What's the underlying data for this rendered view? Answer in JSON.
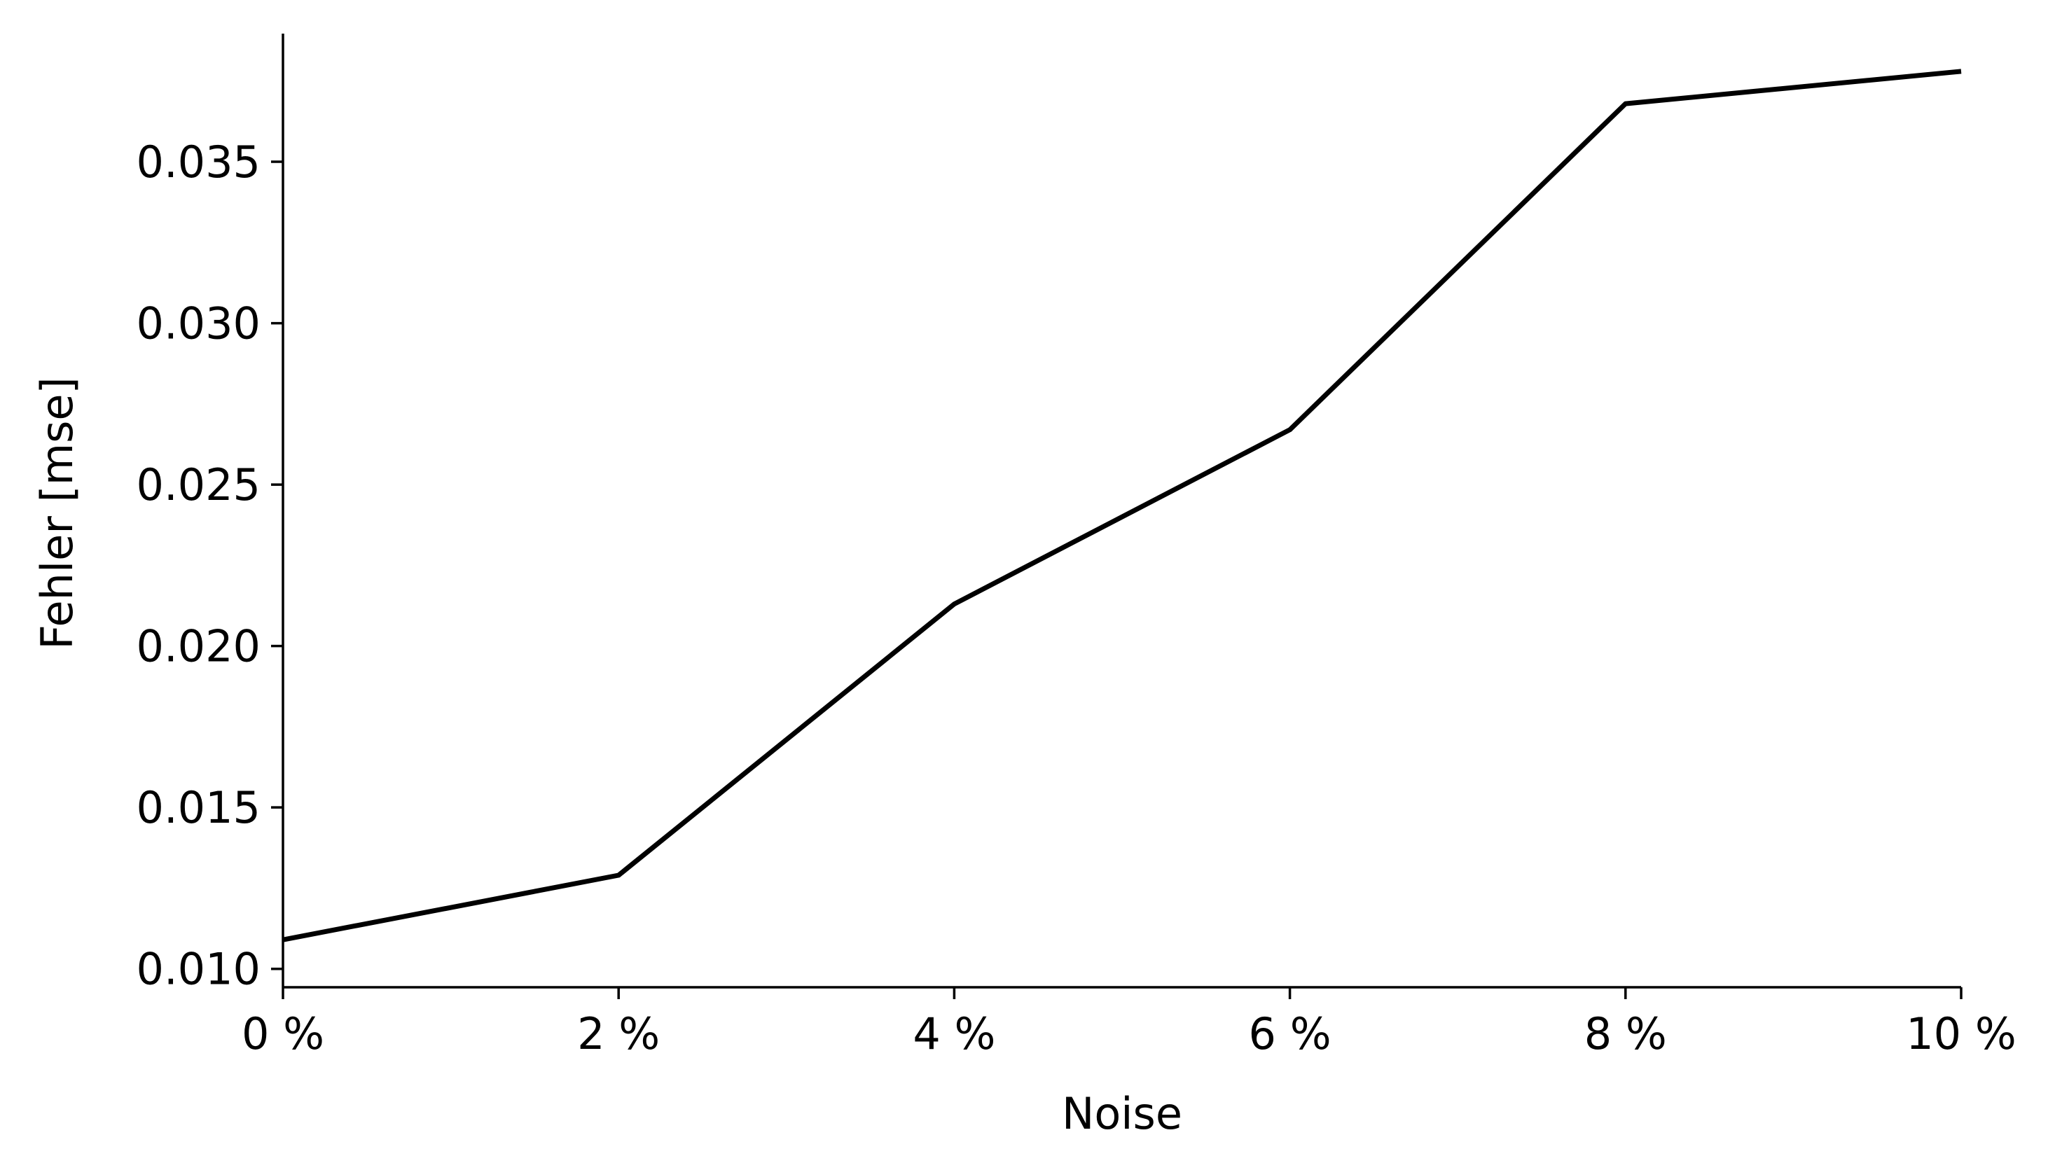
{
  "chart_data": {
    "type": "line",
    "title": "",
    "xlabel": "Noise",
    "ylabel": "Fehler [mse]",
    "x": [
      0,
      2,
      4,
      6,
      8,
      10
    ],
    "x_tick_values": [
      0,
      2,
      4,
      6,
      8,
      10
    ],
    "x_tick_labels": [
      "0 %",
      "2 %",
      "4 %",
      "6 %",
      "8 %",
      "10 %"
    ],
    "y_tick_values": [
      0.01,
      0.015,
      0.02,
      0.025,
      0.03,
      0.035
    ],
    "y_tick_labels": [
      "0.010",
      "0.015",
      "0.020",
      "0.025",
      "0.030",
      "0.035"
    ],
    "xlim": [
      0,
      10
    ],
    "ylim": [
      0.00943,
      0.03897
    ],
    "grid": false,
    "legend": "none",
    "series": [
      {
        "values": [
          0.0109,
          0.0129,
          0.0213,
          0.0267,
          0.0368,
          0.0378
        ],
        "color": "#000000"
      }
    ]
  }
}
